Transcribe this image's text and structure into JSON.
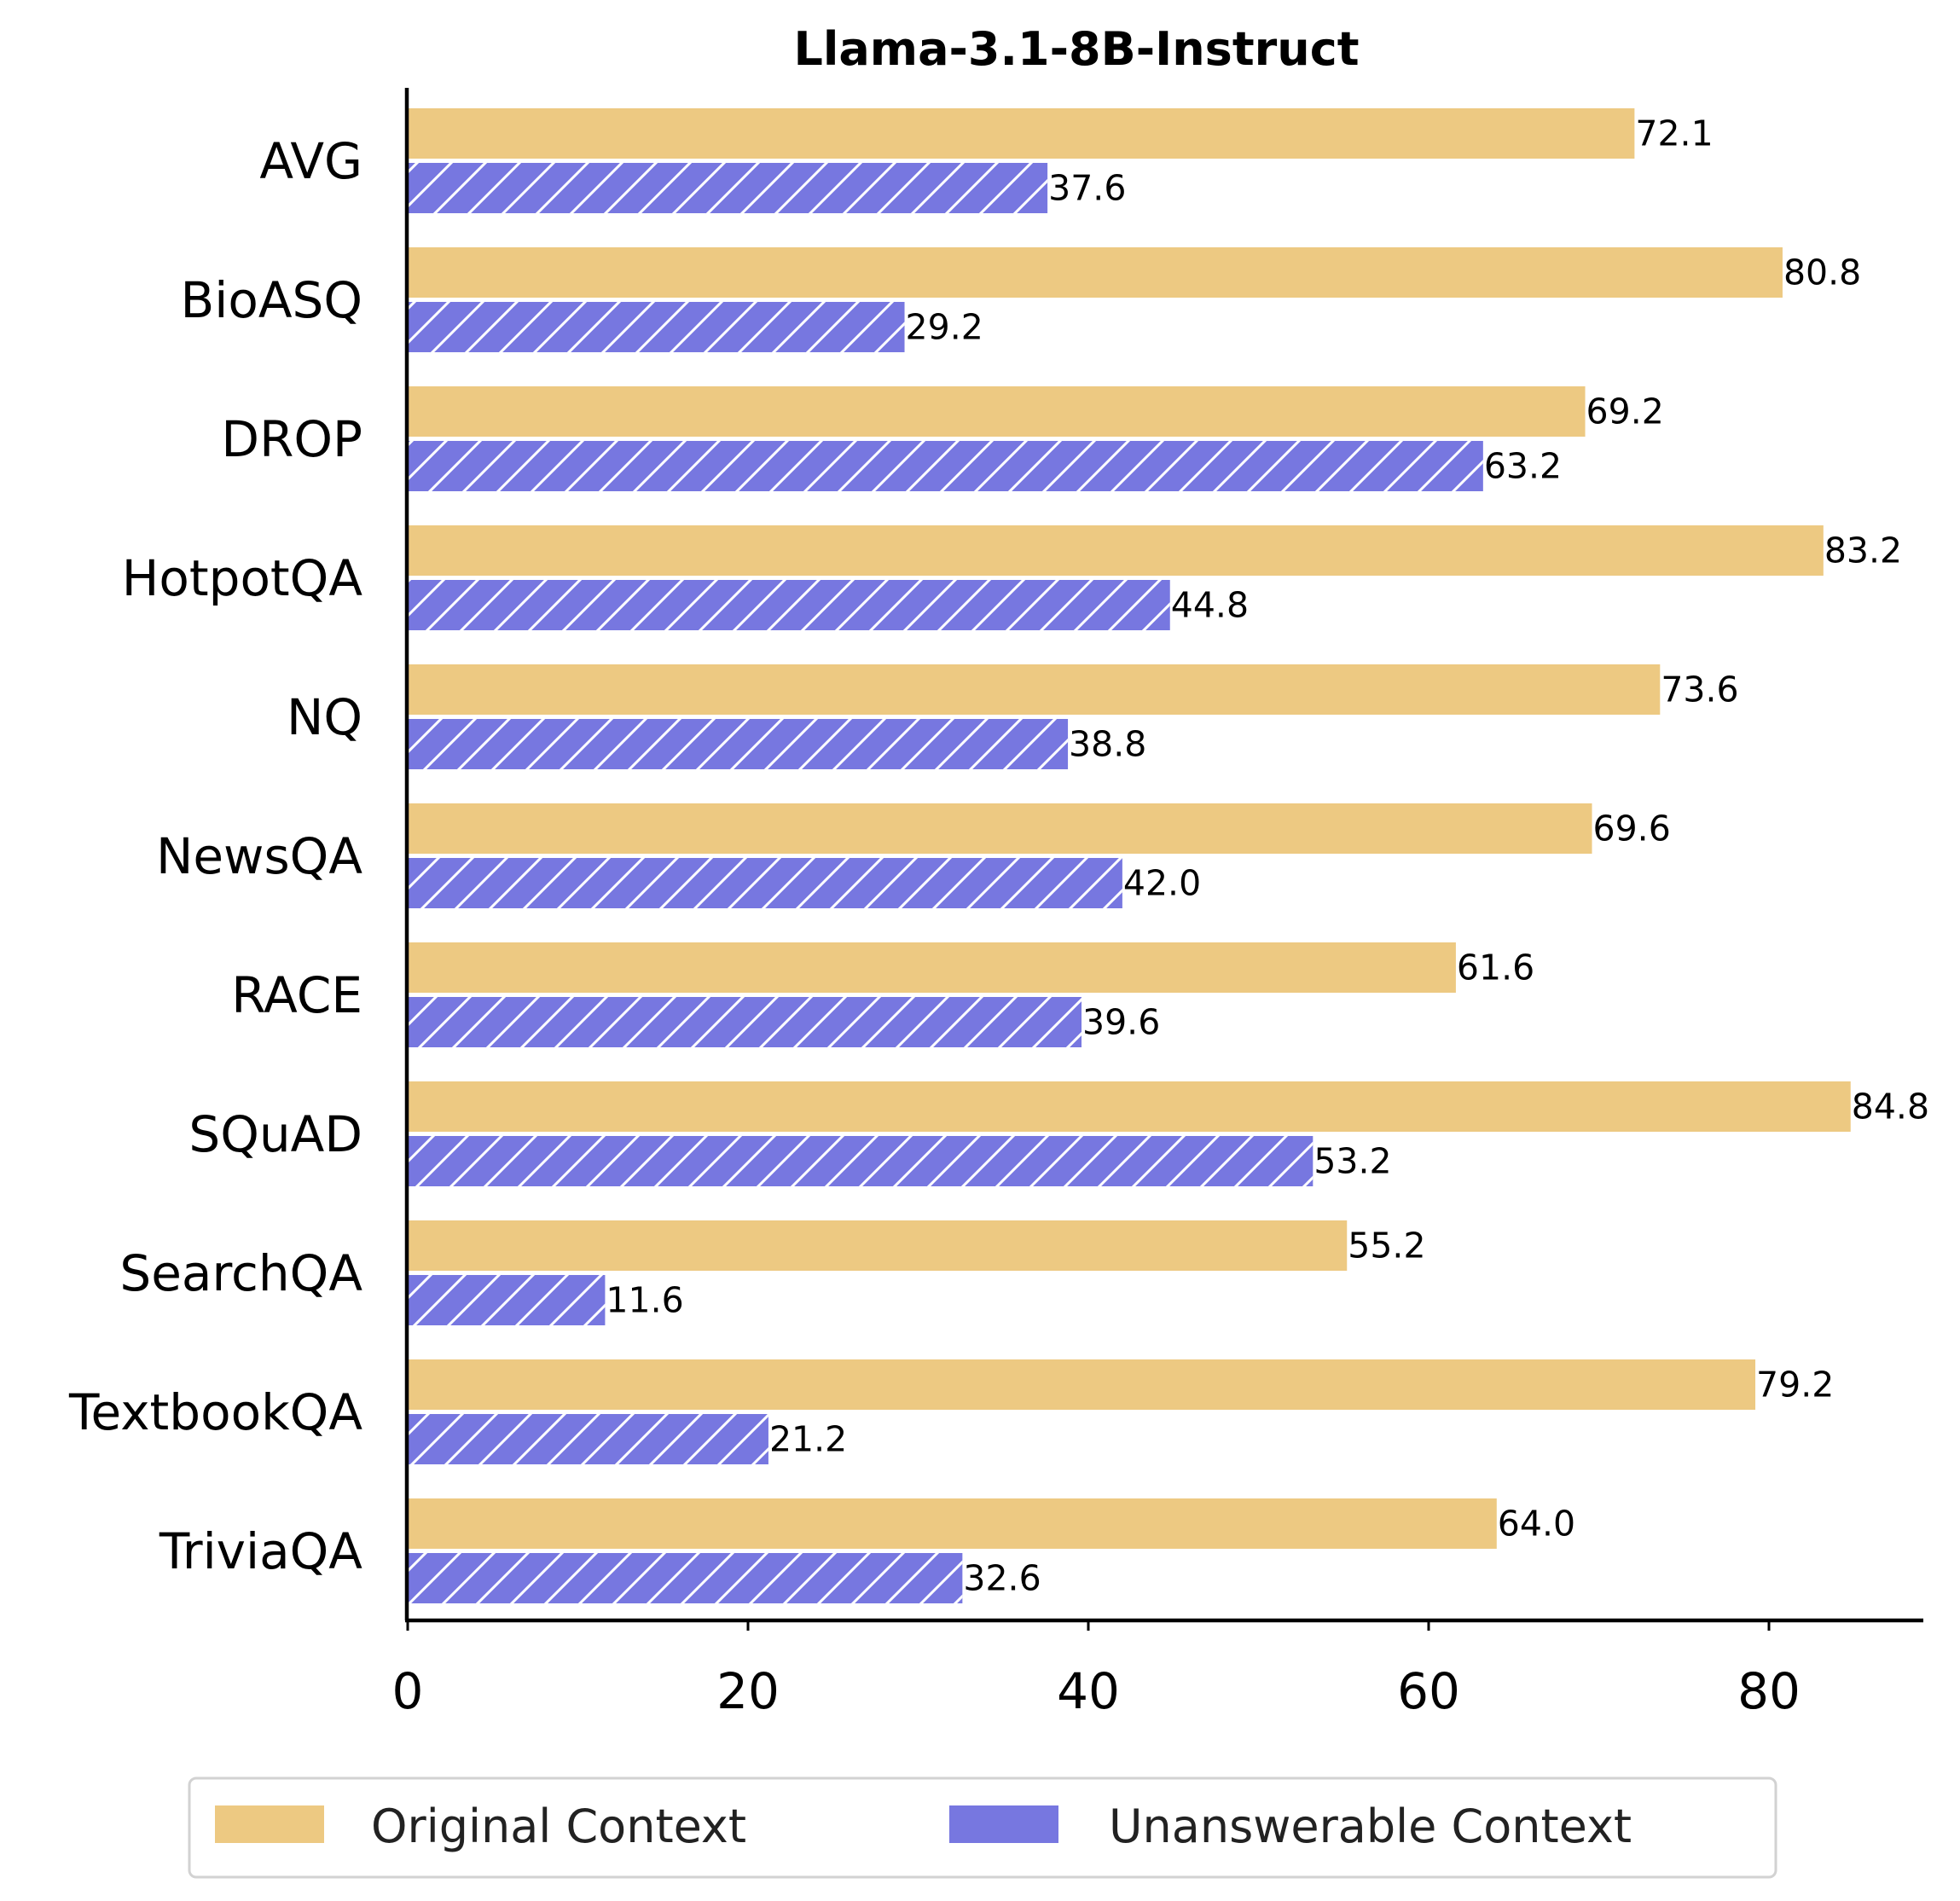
{
  "chart_data": {
    "type": "bar",
    "orientation": "horizontal",
    "title": "Llama-3.1-8B-Instruct",
    "xlabel": "",
    "ylabel": "",
    "xlim": [
      0,
      89
    ],
    "xticks": [
      0,
      20,
      40,
      60,
      80
    ],
    "grid": false,
    "legend_position": "bottom-center",
    "categories": [
      "AVG",
      "BioASQ",
      "DROP",
      "HotpotQA",
      "NQ",
      "NewsQA",
      "RACE",
      "SQuAD",
      "SearchQA",
      "TextbookQA",
      "TriviaQA"
    ],
    "series": [
      {
        "name": "Original Context",
        "color": "#EDC982",
        "hatch": false,
        "values": [
          72.1,
          80.8,
          69.2,
          83.2,
          73.6,
          69.6,
          61.6,
          84.8,
          55.2,
          79.2,
          64.0
        ],
        "labels": [
          "72.1",
          "80.8",
          "69.2",
          "83.2",
          "73.6",
          "69.6",
          "61.6",
          "84.8",
          "55.2",
          "79.2",
          "64.0"
        ]
      },
      {
        "name": "Unanswerable Context",
        "color": "#7777E0",
        "hatch": true,
        "values": [
          37.6,
          29.2,
          63.2,
          44.8,
          38.8,
          42.0,
          39.6,
          53.2,
          11.6,
          21.2,
          32.6
        ],
        "labels": [
          "37.6",
          "29.2",
          "63.2",
          "44.8",
          "38.8",
          "42.0",
          "39.6",
          "53.2",
          "11.6",
          "21.2",
          "32.6"
        ]
      }
    ]
  }
}
